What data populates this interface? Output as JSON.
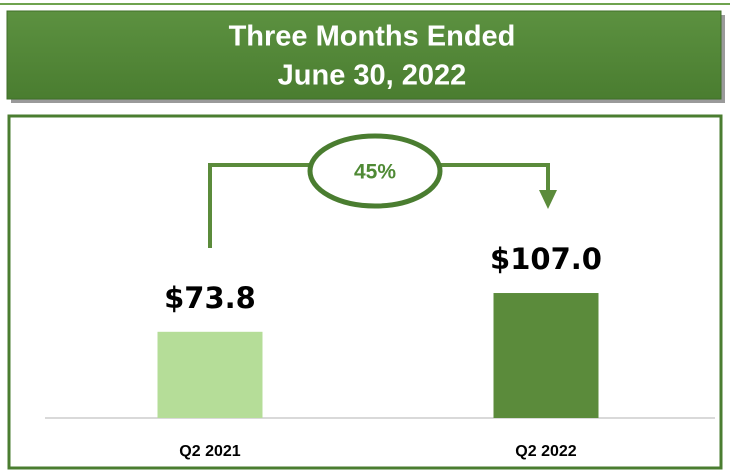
{
  "chart_data": {
    "type": "bar",
    "title": [
      "Three Months Ended",
      "June 30, 2022"
    ],
    "categories": [
      "Q2 2021",
      "Q2 2022"
    ],
    "values": [
      73.8,
      107.0
    ],
    "value_labels": [
      "$73.8",
      "$107.0"
    ],
    "colors": [
      "#b5dd98",
      "#5b8b3b"
    ],
    "annotation": "45%"
  }
}
